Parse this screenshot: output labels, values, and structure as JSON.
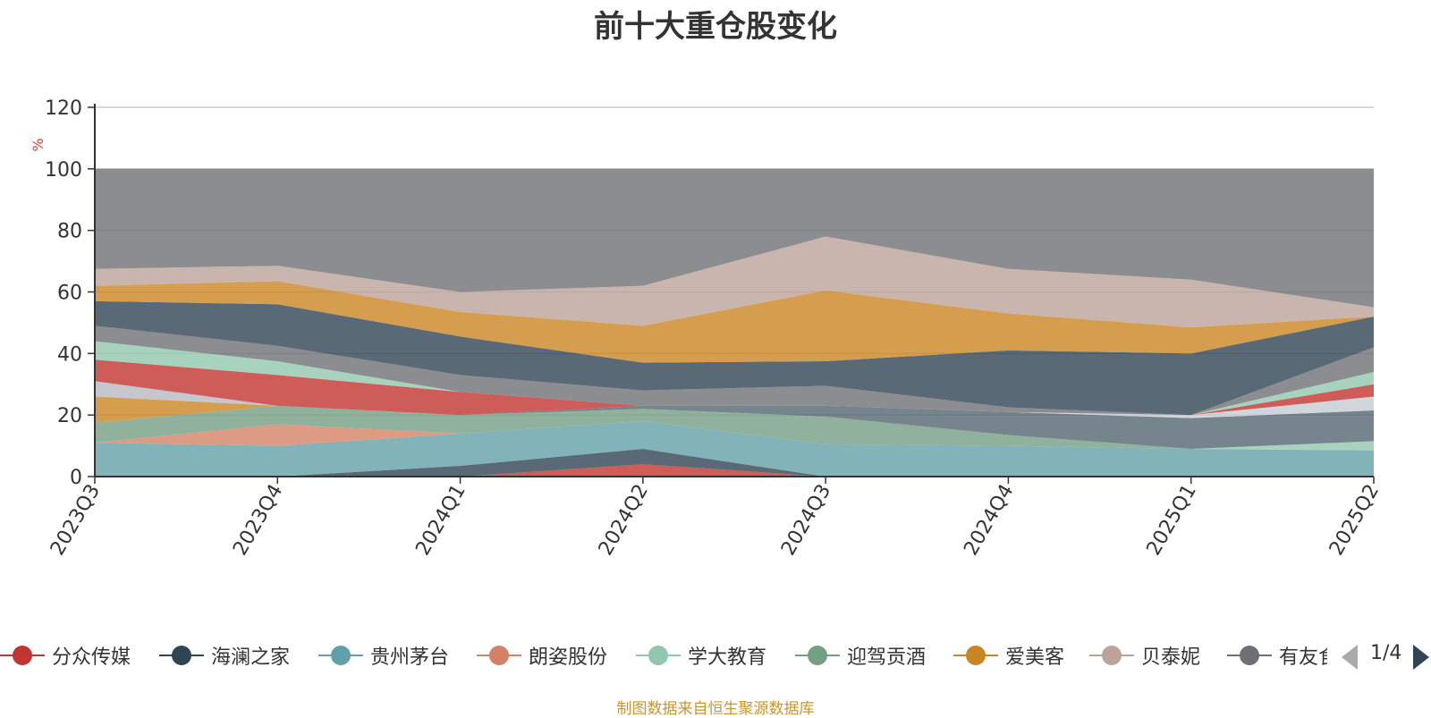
{
  "chart_data": {
    "type": "area",
    "stacked": true,
    "title": "前十大重仓股变化",
    "ylabel": "%",
    "ylim": [
      0,
      120
    ],
    "yticks": [
      0,
      20,
      40,
      60,
      80,
      100,
      120
    ],
    "grid": true,
    "x": [
      "2023Q3",
      "2023Q4",
      "2024Q1",
      "2024Q2",
      "2024Q3",
      "2024Q4",
      "2025Q1",
      "2025Q2"
    ],
    "series": [
      {
        "name": "分众传媒",
        "color": "#c23531",
        "values": [
          0,
          0,
          0,
          4,
          0,
          0,
          0,
          0
        ]
      },
      {
        "name": "海澜之家",
        "color": "#2f4554",
        "values": [
          0,
          0,
          3.5,
          5,
          0,
          0,
          0,
          0
        ]
      },
      {
        "name": "贵州茅台",
        "color": "#61a0a8",
        "values": [
          11,
          10,
          10.5,
          9,
          10.5,
          10,
          9,
          8.5
        ]
      },
      {
        "name": "朗姿股份",
        "color": "#d48265",
        "values": [
          0,
          7,
          0,
          0,
          0,
          0,
          0,
          0
        ]
      },
      {
        "name": "学大教育",
        "color": "#91c7ae",
        "values": [
          0,
          0,
          0,
          0,
          0,
          0,
          0,
          3
        ]
      },
      {
        "name": "迎驾贡酒",
        "color": "#749f83",
        "values": [
          6.5,
          6,
          6,
          4,
          9,
          3.5,
          0,
          0
        ]
      },
      {
        "name": "爱美客",
        "color": "#ca8622",
        "values": [
          8.5,
          0,
          0,
          0,
          0,
          0,
          0,
          0
        ]
      },
      {
        "name": "贝泰妮",
        "color": "#bda29a",
        "values": [
          5,
          0,
          0,
          0,
          0,
          0,
          0,
          0
        ]
      }
    ],
    "others_color": "#6e7074",
    "cumulative_bands": [
      [
        26,
        23,
        20,
        23,
        23,
        21,
        19,
        21.5
      ],
      [
        31,
        23,
        20,
        23,
        23,
        21,
        20,
        26
      ],
      [
        38,
        33,
        27.5,
        23,
        23,
        21,
        20,
        30
      ],
      [
        44,
        37.5,
        27.5,
        23,
        23,
        21,
        20,
        34
      ],
      [
        49,
        42.5,
        33,
        28,
        29.5,
        22.5,
        20,
        42
      ],
      [
        57,
        56,
        45.5,
        37,
        37.5,
        41,
        40,
        52
      ],
      [
        62,
        63.5,
        53.5,
        49,
        60.5,
        53,
        48.5,
        52
      ],
      [
        67.5,
        68.5,
        60,
        62,
        78,
        67.5,
        64,
        55
      ],
      [
        100,
        100,
        100,
        100,
        100,
        100,
        100,
        100
      ]
    ],
    "legend_position": "bottom",
    "legend_items": [
      "分众传媒",
      "海澜之家",
      "贵州茅台",
      "朗姿股份",
      "学大教育",
      "迎驾贡酒",
      "爱美客",
      "贝泰妮",
      "有友食品"
    ],
    "legend_colors": [
      "#c23531",
      "#2f4554",
      "#61a0a8",
      "#d48265",
      "#91c7ae",
      "#749f83",
      "#ca8622",
      "#bda29a",
      "#6e7074"
    ]
  },
  "legend": {
    "page_text": "1/4"
  },
  "source_note": "制图数据来自恒生聚源数据库"
}
